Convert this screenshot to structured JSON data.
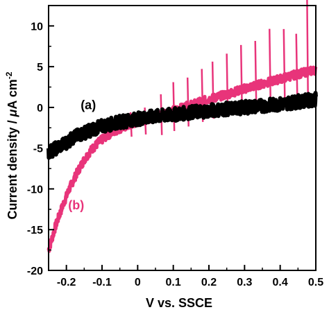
{
  "chart_data": {
    "type": "line",
    "xlabel": "V vs. SSCE",
    "ylabel_main": "Current density / ",
    "ylabel_mu": "μ",
    "ylabel_unit": "A cm",
    "ylabel_exp": "-2",
    "xlim": [
      -0.25,
      0.5
    ],
    "ylim": [
      -20,
      12.5
    ],
    "xticks": [
      -0.2,
      -0.1,
      0,
      0.1,
      0.2,
      0.3,
      0.4,
      0.5
    ],
    "xtick_labels": [
      "-0.2",
      "-0.1",
      "0",
      "0.1",
      "0.2",
      "0.3",
      "0.4",
      "0.5"
    ],
    "yticks": [
      -20,
      -15,
      -10,
      -5,
      0,
      5,
      10
    ],
    "ytick_labels": [
      "-20",
      "-15",
      "-10",
      "-5",
      "0",
      "5",
      "10"
    ],
    "grid": false,
    "series": [
      {
        "name": "(a)",
        "color": "#000000",
        "x": [
          -0.25,
          -0.22,
          -0.2,
          -0.18,
          -0.15,
          -0.12,
          -0.1,
          -0.05,
          0,
          0.05,
          0.1,
          0.15,
          0.2,
          0.25,
          0.3,
          0.35,
          0.4,
          0.45,
          0.5
        ],
        "y": [
          -5.5,
          -4.8,
          -4.3,
          -3.7,
          -3.1,
          -2.6,
          -2.3,
          -1.8,
          -1.4,
          -1.1,
          -0.9,
          -0.6,
          -0.4,
          -0.2,
          0.0,
          0.2,
          0.4,
          0.7,
          1.0
        ]
      },
      {
        "name": "(b)",
        "color": "#e8347a",
        "x": [
          -0.25,
          -0.23,
          -0.21,
          -0.19,
          -0.17,
          -0.15,
          -0.13,
          -0.11,
          -0.09,
          -0.07,
          -0.05,
          -0.02,
          0,
          0.05,
          0.1,
          0.15,
          0.2,
          0.25,
          0.3,
          0.35,
          0.4,
          0.45,
          0.48,
          0.5
        ],
        "y": [
          -17.5,
          -14.5,
          -12.0,
          -9.8,
          -8.0,
          -6.4,
          -5.2,
          -4.3,
          -3.6,
          -3.0,
          -2.6,
          -2.1,
          -1.8,
          -1.1,
          -0.4,
          0.3,
          1.0,
          1.6,
          2.3,
          2.9,
          3.5,
          4.1,
          4.4,
          4.6
        ],
        "spikes": [
          {
            "x": -0.02,
            "up": 1.5,
            "down": -1.5
          },
          {
            "x": 0.02,
            "up": 1.5,
            "down": -1.8
          },
          {
            "x": 0.065,
            "up": 2.5,
            "down": -2.5
          },
          {
            "x": 0.1,
            "up": 3.5,
            "down": -2.5
          },
          {
            "x": 0.14,
            "up": 3.5,
            "down": -2.5
          },
          {
            "x": 0.18,
            "up": 4.0,
            "down": -2.5
          },
          {
            "x": 0.21,
            "up": 4.5,
            "down": -2.5
          },
          {
            "x": 0.25,
            "up": 5.0,
            "down": -2.5
          },
          {
            "x": 0.29,
            "up": 5.5,
            "down": -2.5
          },
          {
            "x": 0.33,
            "up": 5.5,
            "down": -2.5
          },
          {
            "x": 0.37,
            "up": 6.5,
            "down": -2.5
          },
          {
            "x": 0.41,
            "up": 6.0,
            "down": -2.5
          },
          {
            "x": 0.445,
            "up": 5.0,
            "down": -2.5
          },
          {
            "x": 0.475,
            "up": 11.2,
            "down": -2.5
          }
        ]
      }
    ],
    "annotations": [
      {
        "text": "(a)",
        "x": -0.16,
        "y": -0.2,
        "color": "#000000"
      },
      {
        "text": "(b)",
        "x": -0.195,
        "y": -12.5,
        "color": "#e8347a"
      }
    ]
  }
}
